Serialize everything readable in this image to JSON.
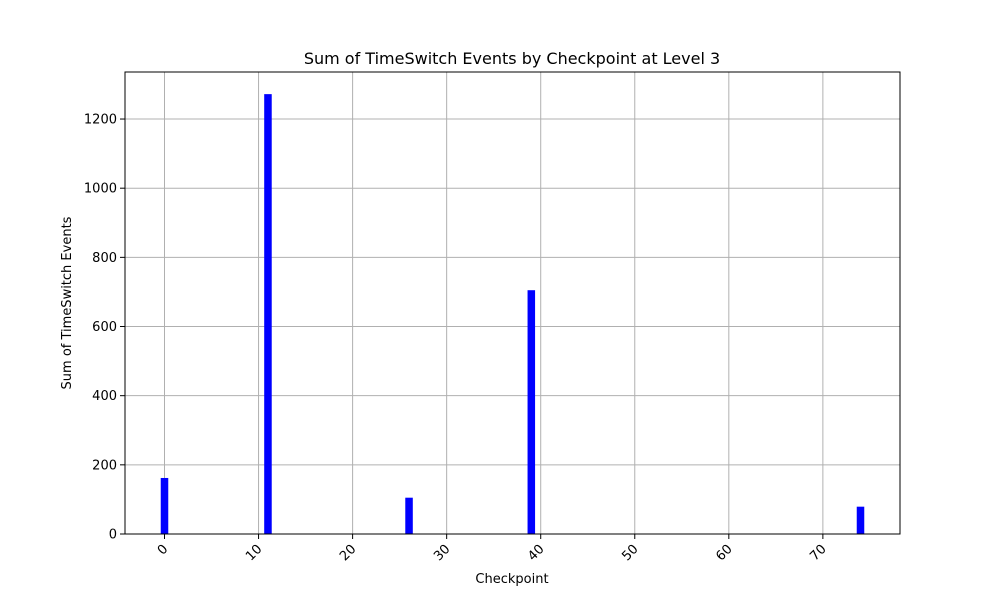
{
  "chart_data": {
    "type": "bar",
    "title": "Sum of TimeSwitch Events by Checkpoint at Level 3",
    "xlabel": "Checkpoint",
    "ylabel": "Sum of TimeSwitch Events",
    "x": [
      0,
      11,
      26,
      39,
      74
    ],
    "values": [
      162,
      1272,
      105,
      705,
      79
    ],
    "bar_color": "#0000ff",
    "xlim": [
      -4.2,
      78.2
    ],
    "ylim": [
      0,
      1336
    ],
    "xticks": [
      0,
      10,
      20,
      30,
      40,
      50,
      60,
      70
    ],
    "yticks": [
      0,
      200,
      400,
      600,
      800,
      1000,
      1200
    ],
    "grid": true,
    "xtick_rotation_deg": 45
  }
}
